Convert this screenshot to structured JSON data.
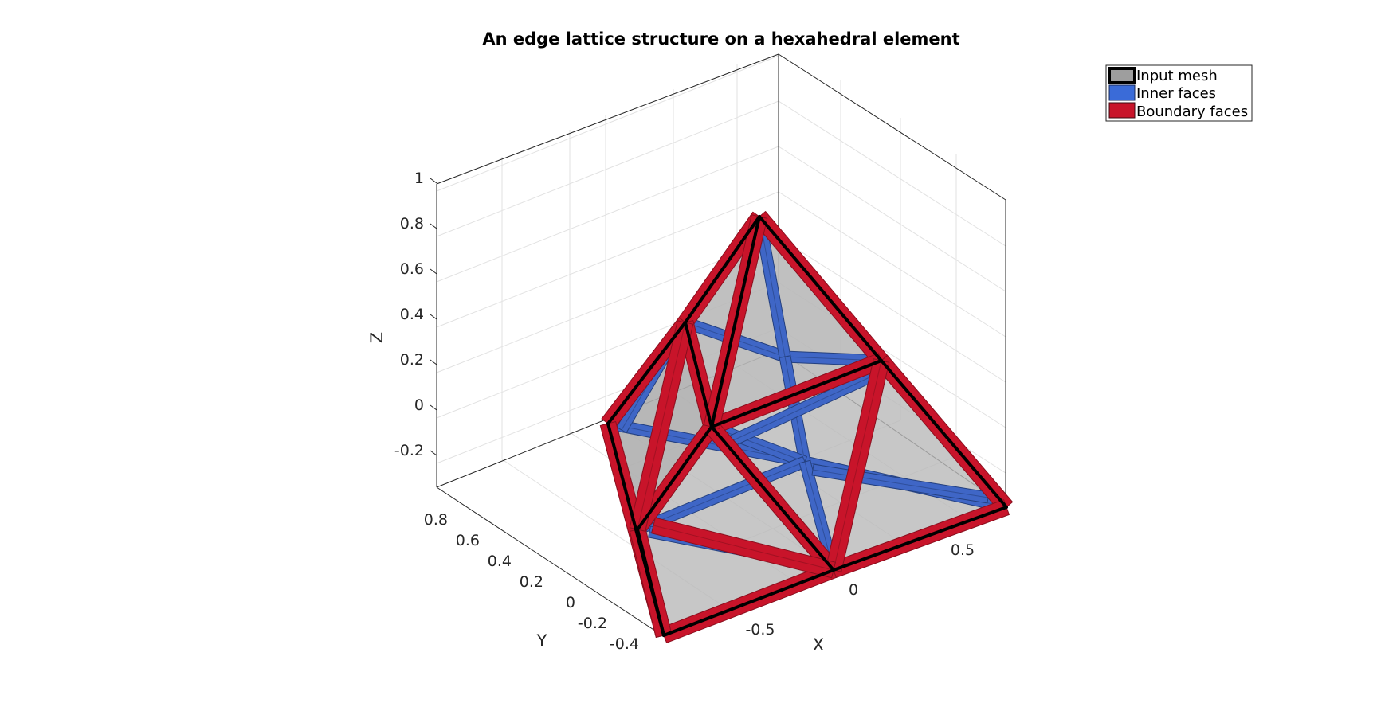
{
  "title": "An edge lattice structure on a hexahedral element",
  "axes": {
    "xlabel": "X",
    "ylabel": "Y",
    "zlabel": "Z",
    "xticks": [
      "-0.5",
      "0",
      "0.5"
    ],
    "yticks": [
      "0.8",
      "0.6",
      "0.4",
      "0.2",
      "0",
      "-0.2",
      "-0.4"
    ],
    "zticks": [
      "1",
      "0.8",
      "0.6",
      "0.4",
      "0.2",
      "0",
      "-0.2"
    ]
  },
  "legend": {
    "items": [
      {
        "label": "Input mesh",
        "color": "#9e9e9e",
        "edge": "#000000"
      },
      {
        "label": "Inner faces",
        "color": "#3a6bd8",
        "edge": "#1a2a55"
      },
      {
        "label": "Boundary faces",
        "color": "#c8142a",
        "edge": "#3a0a10"
      }
    ]
  },
  "colors": {
    "boundary": "#c8142a",
    "boundary_dark": "#8a0f1e",
    "inner": "#3f66c6",
    "inner_dark": "#24407f",
    "mesh_fill": "#b9b9b9",
    "grid": "#e2e2e2",
    "axis": "#262626"
  }
}
